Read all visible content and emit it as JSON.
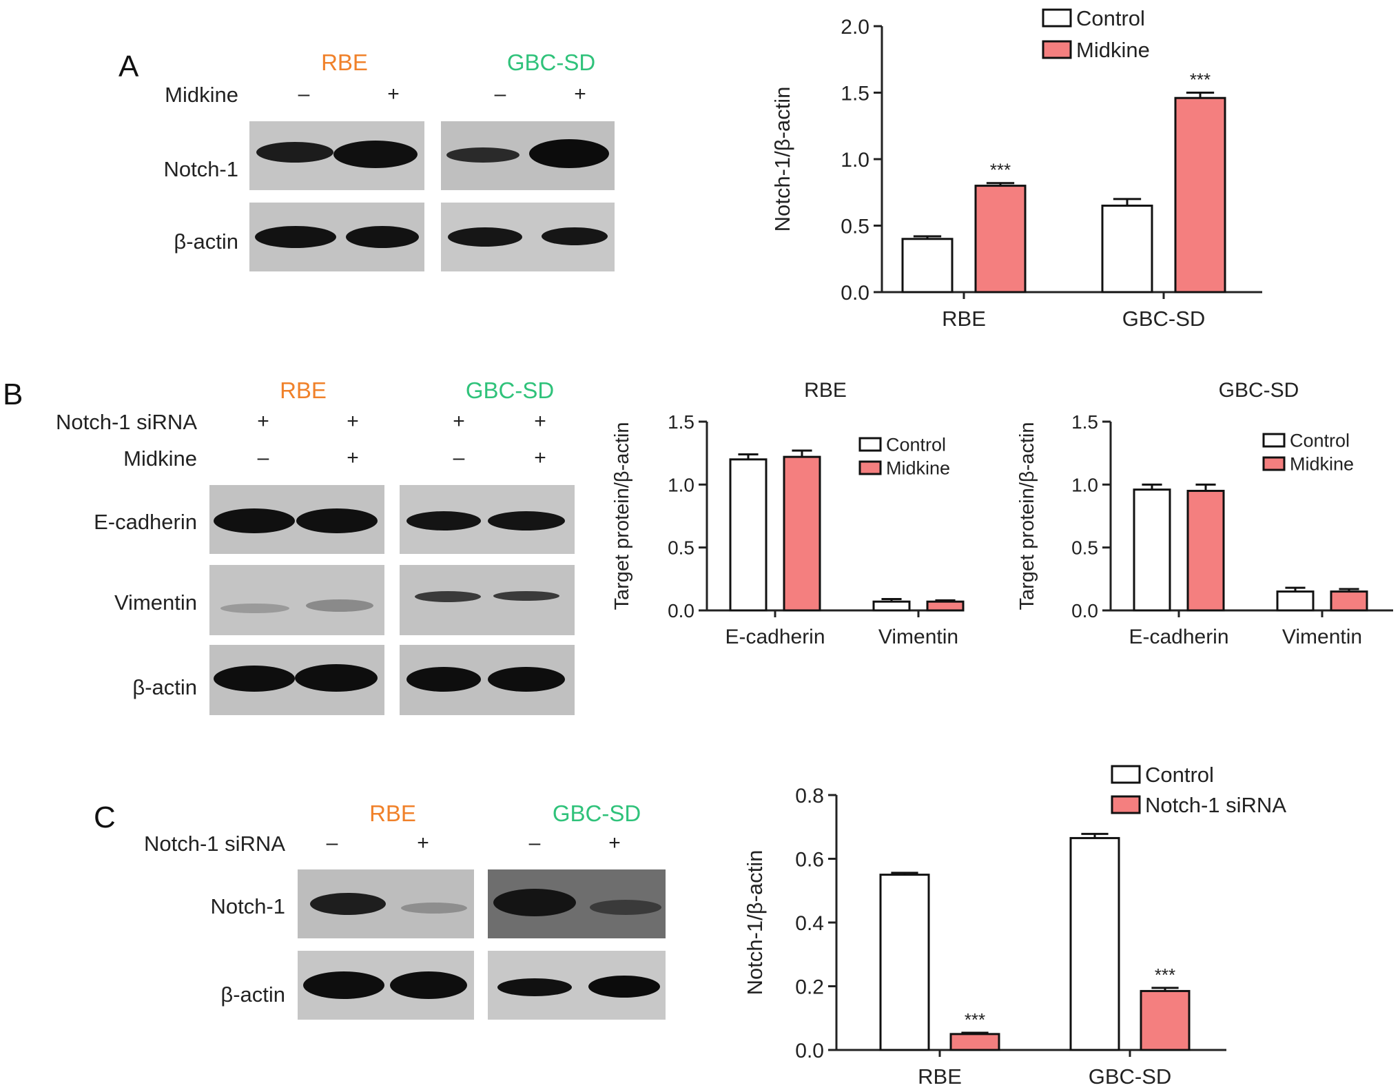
{
  "colors": {
    "control": "#ffffff",
    "treated": "#f47f7f",
    "rbe_label": "#f0812a",
    "gbcsd_label": "#2fc27a",
    "axis": "#222222"
  },
  "panels": {
    "A": {
      "letter": "A",
      "cell_lines": [
        "RBE",
        "GBC-SD"
      ],
      "treatment_rows": [
        {
          "label": "Midkine",
          "signs": [
            "–",
            "+",
            "–",
            "+"
          ]
        }
      ],
      "blot_rows": [
        "Notch-1",
        "β-actin"
      ]
    },
    "B": {
      "letter": "B",
      "cell_lines": [
        "RBE",
        "GBC-SD"
      ],
      "treatment_rows": [
        {
          "label": "Notch-1 siRNA",
          "signs": [
            "+",
            "+",
            "+",
            "+"
          ]
        },
        {
          "label": "Midkine",
          "signs": [
            "–",
            "+",
            "–",
            "+"
          ]
        }
      ],
      "blot_rows": [
        "E-cadherin",
        "Vimentin",
        "β-actin"
      ]
    },
    "C": {
      "letter": "C",
      "cell_lines": [
        "RBE",
        "GBC-SD"
      ],
      "treatment_rows": [
        {
          "label": "Notch-1 siRNA",
          "signs": [
            "–",
            "+",
            "–",
            "+"
          ]
        }
      ],
      "blot_rows": [
        "Notch-1",
        "β-actin"
      ]
    }
  },
  "chart_data": [
    {
      "id": "A",
      "type": "bar",
      "title": "",
      "categories": [
        "RBE",
        "GBC-SD"
      ],
      "series": [
        {
          "name": "Control",
          "values": [
            0.4,
            0.65
          ],
          "errors": [
            0.02,
            0.05
          ]
        },
        {
          "name": "Midkine",
          "values": [
            0.8,
            1.46
          ],
          "errors": [
            0.02,
            0.04
          ]
        }
      ],
      "significance": [
        "***",
        "***"
      ],
      "ylabel": "Notch-1/β-actin",
      "ylim": [
        0,
        2.0
      ],
      "yticks": [
        "0.0",
        "0.5",
        "1.0",
        "1.5",
        "2.0"
      ],
      "legend": "top-right"
    },
    {
      "id": "B1",
      "type": "bar",
      "title": "RBE",
      "categories": [
        "E-cadherin",
        "Vimentin"
      ],
      "series": [
        {
          "name": "Control",
          "values": [
            1.2,
            0.07
          ],
          "errors": [
            0.04,
            0.02
          ]
        },
        {
          "name": "Midkine",
          "values": [
            1.22,
            0.07
          ],
          "errors": [
            0.05,
            0.01
          ]
        }
      ],
      "significance": [
        "",
        ""
      ],
      "ylabel": "Target protein/β-actin",
      "ylim": [
        0,
        1.5
      ],
      "yticks": [
        "0.0",
        "0.5",
        "1.0",
        "1.5"
      ],
      "legend": "top-right"
    },
    {
      "id": "B2",
      "type": "bar",
      "title": "GBC-SD",
      "categories": [
        "E-cadherin",
        "Vimentin"
      ],
      "series": [
        {
          "name": "Control",
          "values": [
            0.96,
            0.15
          ],
          "errors": [
            0.04,
            0.03
          ]
        },
        {
          "name": "Midkine",
          "values": [
            0.95,
            0.15
          ],
          "errors": [
            0.05,
            0.02
          ]
        }
      ],
      "significance": [
        "",
        ""
      ],
      "ylabel": "Target protein/β-actin",
      "ylim": [
        0,
        1.5
      ],
      "yticks": [
        "0.0",
        "0.5",
        "1.0",
        "1.5"
      ],
      "legend": "top-right"
    },
    {
      "id": "C",
      "type": "bar",
      "title": "",
      "categories": [
        "RBE",
        "GBC-SD"
      ],
      "series": [
        {
          "name": "Control",
          "values": [
            0.55,
            0.665
          ],
          "errors": [
            0.006,
            0.013
          ]
        },
        {
          "name": "Notch-1 siRNA",
          "values": [
            0.05,
            0.185
          ],
          "errors": [
            0.004,
            0.01
          ]
        }
      ],
      "significance": [
        "***",
        "***"
      ],
      "ylabel": "Notch-1/β-actin",
      "ylim": [
        0,
        0.8
      ],
      "yticks": [
        "0.0",
        "0.2",
        "0.4",
        "0.6",
        "0.8"
      ],
      "legend": "top-right"
    }
  ]
}
